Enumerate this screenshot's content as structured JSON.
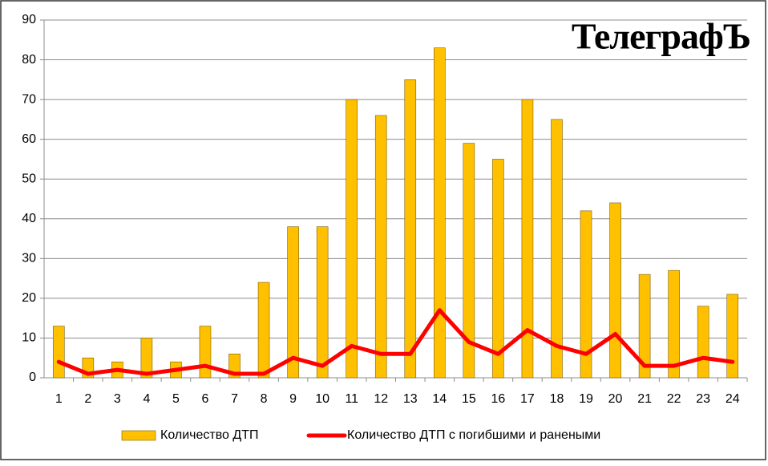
{
  "chart_data": {
    "type": "bar",
    "logo": "ТелеграфЪ",
    "categories": [
      "1",
      "2",
      "3",
      "4",
      "5",
      "6",
      "7",
      "8",
      "9",
      "10",
      "11",
      "12",
      "13",
      "14",
      "15",
      "16",
      "17",
      "18",
      "19",
      "20",
      "21",
      "22",
      "23",
      "24"
    ],
    "series": [
      {
        "name": "Количество ДТП",
        "type": "bar",
        "color": "#FFC000",
        "values": [
          13,
          5,
          4,
          10,
          4,
          13,
          6,
          24,
          38,
          38,
          70,
          66,
          75,
          83,
          59,
          55,
          70,
          65,
          42,
          44,
          26,
          27,
          18,
          21
        ]
      },
      {
        "name": "Количество ДТП с погибшими и ранеными",
        "type": "line",
        "color": "#FF0000",
        "values": [
          4,
          1,
          2,
          1,
          2,
          3,
          1,
          1,
          5,
          3,
          8,
          6,
          6,
          17,
          9,
          6,
          12,
          8,
          6,
          11,
          3,
          3,
          5,
          4
        ]
      }
    ],
    "ylim": [
      0,
      90
    ],
    "yticks": [
      0,
      10,
      20,
      30,
      40,
      50,
      60,
      70,
      80,
      90
    ],
    "grid": true,
    "legend": "bottom"
  }
}
